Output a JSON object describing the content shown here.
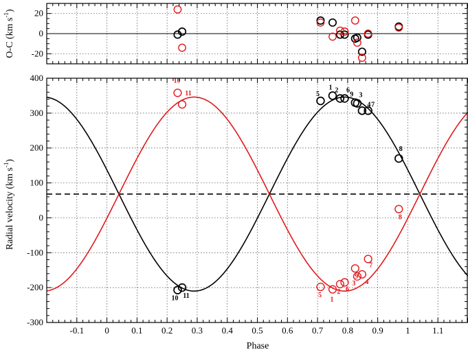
{
  "colors": {
    "primary": "#000000",
    "secondary": "#e0191b"
  },
  "chart_data": [
    {
      "type": "scatter",
      "panel": "residuals",
      "xlabel": "",
      "ylabel": "O-C (km s-1)",
      "ylabel_parts": [
        "O-C (km s",
        "-1",
        ")"
      ],
      "xlim": [
        -0.2,
        1.2
      ],
      "ylim": [
        -30,
        30
      ],
      "yticks": [
        -20,
        0,
        20
      ],
      "grid": true,
      "reference_line": 0,
      "series": [
        {
          "color": "#000000",
          "points": [
            {
              "x": 0.235,
              "y": -1
            },
            {
              "x": 0.25,
              "y": 2
            },
            {
              "x": 0.71,
              "y": 13
            },
            {
              "x": 0.75,
              "y": 11
            },
            {
              "x": 0.775,
              "y": -1
            },
            {
              "x": 0.79,
              "y": -1
            },
            {
              "x": 0.825,
              "y": -5
            },
            {
              "x": 0.832,
              "y": -4
            },
            {
              "x": 0.848,
              "y": -18
            },
            {
              "x": 0.868,
              "y": -1
            },
            {
              "x": 0.97,
              "y": 7
            }
          ]
        },
        {
          "color": "#e0191b",
          "points": [
            {
              "x": 0.235,
              "y": 24
            },
            {
              "x": 0.25,
              "y": -14
            },
            {
              "x": 0.71,
              "y": 11
            },
            {
              "x": 0.75,
              "y": -3
            },
            {
              "x": 0.775,
              "y": 3
            },
            {
              "x": 0.79,
              "y": 2
            },
            {
              "x": 0.825,
              "y": 13
            },
            {
              "x": 0.832,
              "y": -9
            },
            {
              "x": 0.848,
              "y": -24
            },
            {
              "x": 0.868,
              "y": 0
            },
            {
              "x": 0.97,
              "y": 6
            }
          ]
        }
      ]
    },
    {
      "type": "scatter",
      "panel": "radial-velocity",
      "xlabel": "Phase",
      "ylabel": "Radial velocity (km s-1)",
      "ylabel_parts": [
        "Radial velocity (km s",
        "-1",
        ")"
      ],
      "xlim": [
        -0.2,
        1.2
      ],
      "ylim": [
        -300,
        400
      ],
      "xticks": [
        -0.1,
        0,
        0.1,
        0.2,
        0.3,
        0.4,
        0.5,
        0.6,
        0.7,
        0.8,
        0.9,
        1,
        1.1
      ],
      "xtick_labels": [
        "-0.1",
        "0",
        "0.1",
        "0.2",
        "0.3",
        "0.4",
        "0.5",
        "0.6",
        "0.7",
        "0.8",
        "0.9",
        "1",
        "1.1"
      ],
      "yticks": [
        -300,
        -200,
        -100,
        0,
        100,
        200,
        300,
        400
      ],
      "grid": true,
      "systemic_velocity": 68,
      "model": {
        "phase_of_max_primary": 0.79,
        "semi_amplitudes": [
          278,
          278
        ]
      },
      "series": [
        {
          "color": "#000000",
          "points": [
            {
              "x": 0.71,
              "y": 335,
              "label": "5"
            },
            {
              "x": 0.75,
              "y": 350,
              "label": "1"
            },
            {
              "x": 0.775,
              "y": 342,
              "label": "2"
            },
            {
              "x": 0.79,
              "y": 342,
              "label": "6"
            },
            {
              "x": 0.825,
              "y": 330,
              "label": "9"
            },
            {
              "x": 0.832,
              "y": 328,
              "label": "3"
            },
            {
              "x": 0.848,
              "y": 307,
              "label": "4"
            },
            {
              "x": 0.868,
              "y": 307,
              "label": "7"
            },
            {
              "x": 0.97,
              "y": 170,
              "label": "8"
            },
            {
              "x": 0.235,
              "y": -207,
              "label": "10"
            },
            {
              "x": 0.25,
              "y": -200,
              "label": "11"
            }
          ]
        },
        {
          "color": "#e0191b",
          "points": [
            {
              "x": 0.71,
              "y": -198,
              "label": "5"
            },
            {
              "x": 0.75,
              "y": -205,
              "label": "1"
            },
            {
              "x": 0.775,
              "y": -190,
              "label": "2"
            },
            {
              "x": 0.79,
              "y": -185,
              "label": "6"
            },
            {
              "x": 0.825,
              "y": -145,
              "label": "9"
            },
            {
              "x": 0.832,
              "y": -168,
              "label": "3"
            },
            {
              "x": 0.848,
              "y": -162,
              "label": "4"
            },
            {
              "x": 0.868,
              "y": -118,
              "label": "7"
            },
            {
              "x": 0.97,
              "y": 25,
              "label": "8"
            },
            {
              "x": 0.235,
              "y": 358,
              "label": "10"
            },
            {
              "x": 0.25,
              "y": 325,
              "label": "11"
            }
          ]
        }
      ]
    }
  ]
}
